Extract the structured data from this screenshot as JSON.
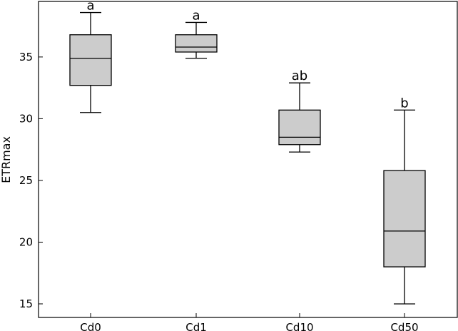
{
  "chart_data": {
    "type": "box",
    "title": "",
    "xlabel": "",
    "ylabel": "ETRmax",
    "ylim": [
      13.9,
      39.5
    ],
    "yticks": [
      15,
      20,
      25,
      30,
      35
    ],
    "grid": false,
    "legend": "none",
    "box_color": "#cccccc",
    "categories": [
      "Cd0",
      "Cd1",
      "Cd10",
      "Cd50"
    ],
    "boxes": [
      {
        "category": "Cd0",
        "min": 30.5,
        "q1": 32.7,
        "median": 34.9,
        "q3": 36.8,
        "max": 38.6,
        "annotation": "a"
      },
      {
        "category": "Cd1",
        "min": 34.9,
        "q1": 35.4,
        "median": 35.8,
        "q3": 36.8,
        "max": 37.8,
        "annotation": "a"
      },
      {
        "category": "Cd10",
        "min": 27.3,
        "q1": 27.9,
        "median": 28.5,
        "q3": 30.7,
        "max": 32.9,
        "annotation": "ab"
      },
      {
        "category": "Cd50",
        "min": 15.0,
        "q1": 18.0,
        "median": 20.9,
        "q3": 25.8,
        "max": 30.7,
        "annotation": "b"
      }
    ]
  }
}
